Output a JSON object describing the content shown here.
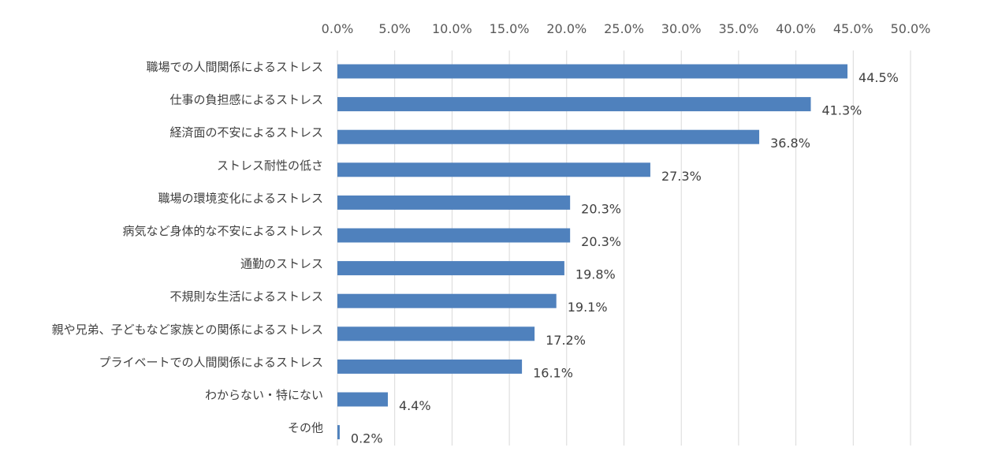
{
  "chart_data": {
    "type": "bar",
    "orientation": "horizontal",
    "categories": [
      "職場での人間関係によるストレス",
      "仕事の負担感によるストレス",
      "経済面の不安によるストレス",
      "ストレス耐性の低さ",
      "職場の環境変化によるストレス",
      "病気など身体的な不安によるストレス",
      "通勤のストレス",
      "不規則な生活によるストレス",
      "親や兄弟、子どもなど家族との関係によるストレス",
      "プライベートでの人間関係によるストレス",
      "わからない・特にない",
      "その他"
    ],
    "values": [
      44.5,
      41.3,
      36.8,
      27.3,
      20.3,
      20.3,
      19.8,
      19.1,
      17.2,
      16.1,
      4.4,
      0.2
    ],
    "value_labels": [
      "44.5%",
      "41.3%",
      "36.8%",
      "27.3%",
      "20.3%",
      "20.3%",
      "19.8%",
      "19.1%",
      "17.2%",
      "16.1%",
      "4.4%",
      "0.2%"
    ],
    "x_ticks": [
      0,
      5,
      10,
      15,
      20,
      25,
      30,
      35,
      40,
      45,
      50
    ],
    "x_tick_labels": [
      "0.0%",
      "5.0%",
      "10.0%",
      "15.0%",
      "20.0%",
      "25.0%",
      "30.0%",
      "35.0%",
      "40.0%",
      "45.0%",
      "50.0%"
    ],
    "xlim": [
      0,
      50
    ],
    "x_axis_position": "top",
    "grid": true,
    "bar_color": "#4f81bd",
    "grid_color": "#d9d9d9",
    "title": "",
    "xlabel": "",
    "ylabel": ""
  }
}
